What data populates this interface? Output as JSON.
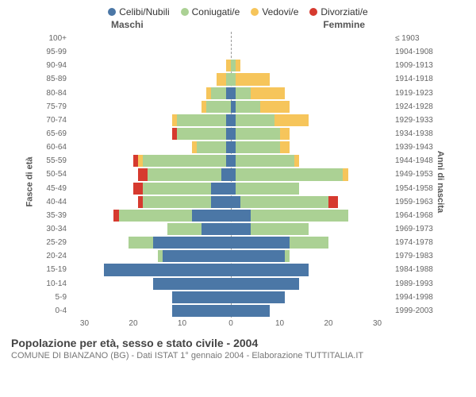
{
  "legend": [
    {
      "label": "Celibi/Nubili",
      "color": "#4b77a6"
    },
    {
      "label": "Coniugati/e",
      "color": "#abd194"
    },
    {
      "label": "Vedovi/e",
      "color": "#f6c55b"
    },
    {
      "label": "Divorziati/e",
      "color": "#d63a2f"
    }
  ],
  "gender_left": "Maschi",
  "gender_right": "Femmine",
  "axis_left_title": "Fasce di età",
  "axis_right_title": "Anni di nascita",
  "colors": {
    "single": "#4b77a6",
    "married": "#abd194",
    "widowed": "#f6c55b",
    "divorced": "#d63a2f",
    "grid": "#999999",
    "bg": "#ffffff"
  },
  "x_max": 33,
  "x_ticks": [
    30,
    20,
    10,
    0,
    10,
    20,
    30
  ],
  "rows": [
    {
      "age": "100+",
      "year": "≤ 1903",
      "m": [
        0,
        0,
        0,
        0
      ],
      "f": [
        0,
        0,
        0,
        0
      ]
    },
    {
      "age": "95-99",
      "year": "1904-1908",
      "m": [
        0,
        0,
        0,
        0
      ],
      "f": [
        0,
        0,
        0,
        0
      ]
    },
    {
      "age": "90-94",
      "year": "1909-1913",
      "m": [
        0,
        0,
        1,
        0
      ],
      "f": [
        0,
        1,
        1,
        0
      ]
    },
    {
      "age": "85-89",
      "year": "1914-1918",
      "m": [
        0,
        1,
        2,
        0
      ],
      "f": [
        0,
        1,
        7,
        0
      ]
    },
    {
      "age": "80-84",
      "year": "1919-1923",
      "m": [
        1,
        3,
        1,
        0
      ],
      "f": [
        1,
        3,
        7,
        0
      ]
    },
    {
      "age": "75-79",
      "year": "1924-1928",
      "m": [
        0,
        5,
        1,
        0
      ],
      "f": [
        1,
        5,
        6,
        0
      ]
    },
    {
      "age": "70-74",
      "year": "1929-1933",
      "m": [
        1,
        10,
        1,
        0
      ],
      "f": [
        1,
        8,
        7,
        0
      ]
    },
    {
      "age": "65-69",
      "year": "1934-1938",
      "m": [
        1,
        10,
        0,
        1
      ],
      "f": [
        1,
        9,
        2,
        0
      ]
    },
    {
      "age": "60-64",
      "year": "1939-1943",
      "m": [
        1,
        6,
        1,
        0
      ],
      "f": [
        1,
        9,
        2,
        0
      ]
    },
    {
      "age": "55-59",
      "year": "1944-1948",
      "m": [
        1,
        17,
        1,
        1
      ],
      "f": [
        1,
        12,
        1,
        0
      ]
    },
    {
      "age": "50-54",
      "year": "1949-1953",
      "m": [
        2,
        15,
        0,
        2
      ],
      "f": [
        1,
        22,
        1,
        0
      ]
    },
    {
      "age": "45-49",
      "year": "1954-1958",
      "m": [
        4,
        14,
        0,
        2
      ],
      "f": [
        1,
        13,
        0,
        0
      ]
    },
    {
      "age": "40-44",
      "year": "1959-1963",
      "m": [
        4,
        14,
        0,
        1
      ],
      "f": [
        2,
        18,
        0,
        2
      ]
    },
    {
      "age": "35-39",
      "year": "1964-1968",
      "m": [
        8,
        15,
        0,
        1
      ],
      "f": [
        4,
        20,
        0,
        0
      ]
    },
    {
      "age": "30-34",
      "year": "1969-1973",
      "m": [
        6,
        7,
        0,
        0
      ],
      "f": [
        4,
        12,
        0,
        0
      ]
    },
    {
      "age": "25-29",
      "year": "1974-1978",
      "m": [
        16,
        5,
        0,
        0
      ],
      "f": [
        12,
        8,
        0,
        0
      ]
    },
    {
      "age": "20-24",
      "year": "1979-1983",
      "m": [
        14,
        1,
        0,
        0
      ],
      "f": [
        11,
        1,
        0,
        0
      ]
    },
    {
      "age": "15-19",
      "year": "1984-1988",
      "m": [
        26,
        0,
        0,
        0
      ],
      "f": [
        16,
        0,
        0,
        0
      ]
    },
    {
      "age": "10-14",
      "year": "1989-1993",
      "m": [
        16,
        0,
        0,
        0
      ],
      "f": [
        14,
        0,
        0,
        0
      ]
    },
    {
      "age": "5-9",
      "year": "1994-1998",
      "m": [
        12,
        0,
        0,
        0
      ],
      "f": [
        11,
        0,
        0,
        0
      ]
    },
    {
      "age": "0-4",
      "year": "1999-2003",
      "m": [
        12,
        0,
        0,
        0
      ],
      "f": [
        8,
        0,
        0,
        0
      ]
    }
  ],
  "footer_title": "Popolazione per età, sesso e stato civile - 2004",
  "footer_sub": "COMUNE DI BIANZANO (BG) - Dati ISTAT 1° gennaio 2004 - Elaborazione TUTTITALIA.IT"
}
